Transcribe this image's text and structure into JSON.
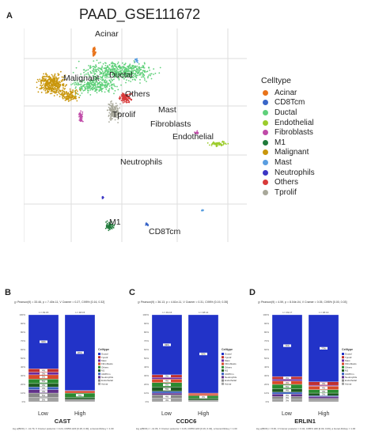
{
  "panels": {
    "a": "A",
    "b": "B",
    "c": "C",
    "d": "D"
  },
  "umap": {
    "title": "PAAD_GSE111672",
    "cluster_labels": [
      "Acinar",
      "Malignant",
      "Ductal",
      "Others",
      "Mast",
      "Tprolif",
      "Fibroblasts",
      "Endothelial",
      "Neutrophils",
      "M1",
      "CD8Tcm"
    ]
  },
  "legend": {
    "title": "Celltype",
    "items": [
      {
        "label": "Acinar",
        "color": "#e8731a"
      },
      {
        "label": "CD8Tcm",
        "color": "#3a66c8"
      },
      {
        "label": "Ductal",
        "color": "#5fd07a"
      },
      {
        "label": "Endothelial",
        "color": "#9ccc2c"
      },
      {
        "label": "Fibroblasts",
        "color": "#c04aa8"
      },
      {
        "label": "M1",
        "color": "#1f7a3a"
      },
      {
        "label": "Malignant",
        "color": "#c9960c"
      },
      {
        "label": "Mast",
        "color": "#5a9ee0"
      },
      {
        "label": "Neutrophils",
        "color": "#3c36c4"
      },
      {
        "label": "Others",
        "color": "#d83a3a"
      },
      {
        "label": "Tprolif",
        "color": "#a8a89a"
      }
    ]
  },
  "chart_data": [
    {
      "type": "bar",
      "panel": "B",
      "gene": "CAST",
      "categories": [
        "Low",
        "High"
      ],
      "ylim": [
        0,
        100
      ],
      "yticks": [
        "0%",
        "10%",
        "20%",
        "30%",
        "40%",
        "50%",
        "60%",
        "70%",
        "80%",
        "90%",
        "100%"
      ],
      "legend_title": "Celltype",
      "legend_items": [
        "Ductal",
        "Tprolif",
        "Mast",
        "Fibroblasts",
        "Others",
        "M1",
        "CD8Tcm",
        "Neutrophils",
        "Endothelial",
        "Acinar"
      ],
      "series": [
        {
          "name": "Ductal",
          "values": [
            62,
            87
          ]
        },
        {
          "name": "Tprolif",
          "values": [
            4,
            1
          ]
        },
        {
          "name": "Mast",
          "values": [
            3,
            0
          ]
        },
        {
          "name": "Fibroblasts",
          "values": [
            5,
            2
          ]
        },
        {
          "name": "Others",
          "values": [
            5,
            5
          ]
        },
        {
          "name": "M1",
          "values": [
            4,
            2
          ]
        },
        {
          "name": "CD8Tcm",
          "values": [
            3,
            0
          ]
        },
        {
          "name": "Neutrophils",
          "values": [
            4,
            0
          ]
        },
        {
          "name": "Endothelial",
          "values": [
            5,
            2
          ]
        },
        {
          "name": "Acinar",
          "values": [
            5,
            1
          ]
        }
      ]
    },
    {
      "type": "bar",
      "panel": "C",
      "gene": "CCDC6",
      "categories": [
        "Low",
        "High"
      ],
      "ylim": [
        0,
        100
      ],
      "yticks": [
        "0%",
        "10%",
        "20%",
        "30%",
        "40%",
        "50%",
        "60%",
        "70%",
        "80%",
        "90%",
        "100%"
      ],
      "legend_title": "Celltype",
      "legend_items": [
        "Ductal",
        "Tprolif",
        "Mast",
        "Fibroblasts",
        "Others",
        "M1",
        "CD8Tcm",
        "Neutrophils",
        "Endothelial",
        "Acinar"
      ],
      "series": [
        {
          "name": "Ductal",
          "values": [
            69,
            90
          ]
        },
        {
          "name": "Tprolif",
          "values": [
            3,
            1
          ]
        },
        {
          "name": "Mast",
          "values": [
            2,
            0
          ]
        },
        {
          "name": "Fibroblasts",
          "values": [
            4,
            2
          ]
        },
        {
          "name": "Others",
          "values": [
            5,
            3
          ]
        },
        {
          "name": "M1",
          "values": [
            5,
            2
          ]
        },
        {
          "name": "CD8Tcm",
          "values": [
            2,
            0
          ]
        },
        {
          "name": "Neutrophils",
          "values": [
            2,
            0
          ]
        },
        {
          "name": "Endothelial",
          "values": [
            4,
            1
          ]
        },
        {
          "name": "Acinar",
          "values": [
            4,
            1
          ]
        }
      ]
    },
    {
      "type": "bar",
      "panel": "D",
      "gene": "ERLIN1",
      "categories": [
        "Low",
        "High"
      ],
      "ylim": [
        0,
        100
      ],
      "yticks": [
        "0%",
        "10%",
        "20%",
        "30%",
        "40%",
        "50%",
        "60%",
        "70%",
        "80%",
        "90%",
        "100%"
      ],
      "legend_title": "Celltype",
      "legend_items": [
        "Ductal",
        "Tprolif",
        "Mast",
        "Fibroblasts",
        "Others",
        "M1",
        "CD8Tcm",
        "Neutrophils",
        "Endothelial",
        "Acinar"
      ],
      "series": [
        {
          "name": "Ductal",
          "values": [
            71,
            77
          ]
        },
        {
          "name": "Tprolif",
          "values": [
            3,
            4
          ]
        },
        {
          "name": "Mast",
          "values": [
            2,
            1
          ]
        },
        {
          "name": "Fibroblasts",
          "values": [
            4,
            4
          ]
        },
        {
          "name": "Others",
          "values": [
            5,
            4
          ]
        },
        {
          "name": "M1",
          "values": [
            4,
            3
          ]
        },
        {
          "name": "CD8Tcm",
          "values": [
            2,
            1
          ]
        },
        {
          "name": "Neutrophils",
          "values": [
            3,
            2
          ]
        },
        {
          "name": "Endothelial",
          "values": [
            3,
            2
          ]
        },
        {
          "name": "Acinar",
          "values": [
            3,
            2
          ]
        }
      ]
    }
  ],
  "stack_colors": {
    "Ductal": "#2233c8",
    "Tprolif": "#c03030",
    "Mast": "#6a2aa0",
    "Fibroblasts": "#d84a2a",
    "Others": "#2a8a30",
    "M1": "#1e5a20",
    "CD8Tcm": "#3a60c0",
    "Neutrophils": "#60308a",
    "Endothelial": "#888888",
    "Acinar": "#a0a0a0"
  },
  "bar_panels": [
    {
      "letter_key": "b",
      "title": "χ² Pearson(9) = 33.46, p = 7.40e-11, V Cramer = 0.27, CI95% [0.16, 0.32]",
      "foot": "log e(BF01) = -11.79, V Cramer posterior = 0.24, CI95% HDI [0.18, 0.30], a Gunel-Dickey = 1.00",
      "group_n": [
        "n = 49.15",
        "n = 48.15"
      ]
    },
    {
      "letter_key": "c",
      "title": "χ² Pearson(9) = 36.13, p = 4.61e-11, V Cramer = 0.31, CI95% [0.19, 0.35]",
      "foot": "log e(BF01) = -11.06, V Cramer posterior = 0.26, CI95% HDI [0.19, 0.32], a Gunel-Dickey = 1.00",
      "group_n": [
        "n = 49.16",
        "n = 48.14"
      ]
    },
    {
      "letter_key": "d",
      "title": "χ² Pearson(9) = 4.59, p = 8.04e-04, V Cramer = 0.05, CI95% [0.00, 0.03]",
      "foot": "log e(BF01) = 8.39, V Cramer posterior = 0.04, CI95% HDI [0.00, 0.06], a Gunel-Dickey = 1.00",
      "group_n": [
        "n = 49.17",
        "n = 48.13"
      ]
    }
  ]
}
